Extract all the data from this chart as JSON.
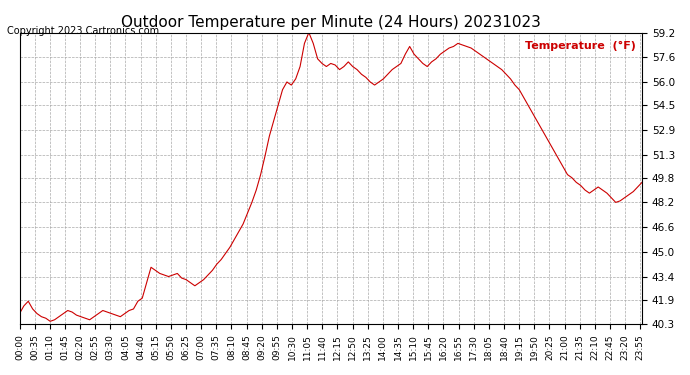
{
  "title": "Outdoor Temperature per Minute (24 Hours) 20231023",
  "copyright_text": "Copyright 2023 Cartronics.com",
  "legend_label": "Temperature  (°F)",
  "line_color": "#cc0000",
  "background_color": "#ffffff",
  "grid_color": "#aaaaaa",
  "ylim": [
    40.3,
    59.2
  ],
  "yticks": [
    40.3,
    41.9,
    43.4,
    45.0,
    46.6,
    48.2,
    49.8,
    51.3,
    52.9,
    54.5,
    56.0,
    57.6,
    59.2
  ],
  "x_labels": [
    "00:00",
    "00:35",
    "01:10",
    "01:45",
    "02:20",
    "02:55",
    "03:30",
    "04:05",
    "04:40",
    "05:15",
    "05:50",
    "06:25",
    "07:00",
    "07:35",
    "08:10",
    "08:45",
    "09:20",
    "09:55",
    "10:30",
    "11:05",
    "11:40",
    "12:15",
    "12:50",
    "13:25",
    "14:00",
    "14:35",
    "15:10",
    "15:45",
    "16:20",
    "16:55",
    "17:30",
    "18:05",
    "18:40",
    "19:15",
    "19:50",
    "20:25",
    "21:00",
    "21:35",
    "22:10",
    "22:45",
    "23:20",
    "23:55"
  ],
  "temperature_data": [
    41.0,
    41.5,
    41.8,
    41.3,
    41.0,
    40.8,
    40.7,
    40.5,
    40.6,
    40.8,
    41.0,
    41.2,
    41.1,
    40.9,
    40.8,
    40.7,
    40.6,
    40.8,
    41.0,
    41.2,
    41.1,
    41.0,
    40.9,
    40.8,
    41.0,
    41.2,
    41.3,
    41.8,
    42.0,
    43.0,
    44.0,
    43.8,
    43.6,
    43.5,
    43.4,
    43.5,
    43.6,
    43.3,
    43.2,
    43.0,
    42.8,
    43.0,
    43.2,
    43.5,
    43.8,
    44.2,
    44.5,
    44.9,
    45.3,
    45.8,
    46.3,
    46.8,
    47.5,
    48.2,
    49.0,
    50.0,
    51.2,
    52.5,
    53.5,
    54.5,
    55.5,
    56.0,
    55.8,
    56.2,
    57.0,
    58.5,
    59.2,
    58.5,
    57.5,
    57.2,
    57.0,
    57.2,
    57.1,
    56.8,
    57.0,
    57.3,
    57.0,
    56.8,
    56.5,
    56.3,
    56.0,
    55.8,
    56.0,
    56.2,
    56.5,
    56.8,
    57.0,
    57.2,
    57.8,
    58.3,
    57.8,
    57.5,
    57.2,
    57.0,
    57.3,
    57.5,
    57.8,
    58.0,
    58.2,
    58.3,
    58.5,
    58.4,
    58.3,
    58.2,
    58.0,
    57.8,
    57.6,
    57.4,
    57.2,
    57.0,
    56.8,
    56.5,
    56.2,
    55.8,
    55.5,
    55.0,
    54.5,
    54.0,
    53.5,
    53.0,
    52.5,
    52.0,
    51.5,
    51.0,
    50.5,
    50.0,
    49.8,
    49.5,
    49.3,
    49.0,
    48.8,
    49.0,
    49.2,
    49.0,
    48.8,
    48.5,
    48.2,
    48.3,
    48.5,
    48.7,
    48.9,
    49.2,
    49.5
  ]
}
